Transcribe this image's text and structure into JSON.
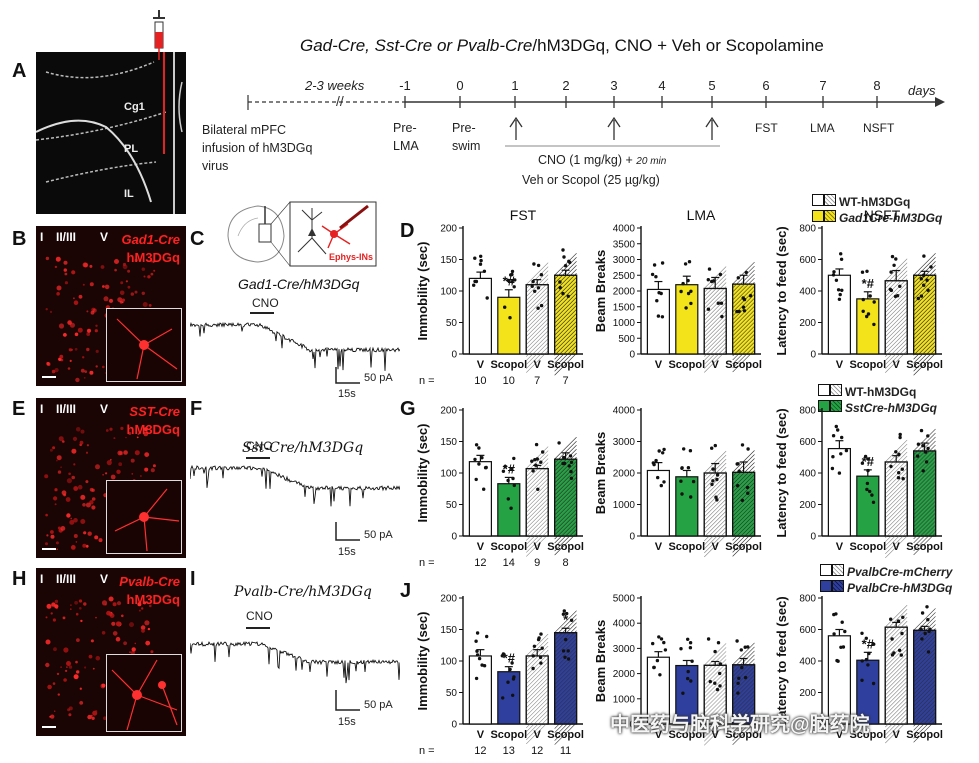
{
  "header": {
    "title_geno": "Gad-Cre, Sst-Cre or Pvalb-Cre",
    "title_rest": "/hM3DGq, CNO + Veh or Scopolamine"
  },
  "panel_labels": [
    "A",
    "B",
    "C",
    "D",
    "E",
    "F",
    "G",
    "H",
    "I",
    "J"
  ],
  "brain": {
    "regions": [
      "Cg1",
      "PL",
      "IL"
    ]
  },
  "timeline": {
    "ticks": [
      "-1",
      "0",
      "1",
      "2",
      "3",
      "4",
      "5",
      "6",
      "7",
      "8"
    ],
    "unit": "days",
    "pre_label": "2-3 weeks",
    "surgery": [
      "Bilateral mPFC",
      "infusion of hM3DGq",
      "virus"
    ],
    "pre_lma": [
      "Pre-",
      "LMA"
    ],
    "pre_swim": [
      "Pre-",
      "swim"
    ],
    "cno_line1": "CNO (1 mg/kg) +",
    "cno_20min": "20 min",
    "cno_line2": "Veh or Scopol (25 µg/kg)",
    "tests": [
      "FST",
      "LMA",
      "NSFT"
    ]
  },
  "micro": {
    "layers": [
      "I",
      "II/III",
      "V"
    ],
    "b": [
      "Gad1-Cre",
      "hM3DGq"
    ],
    "e": [
      "SST-Cre",
      "hM3DGq"
    ],
    "h": [
      "Pvalb-Cre",
      "hM3DGq"
    ]
  },
  "traces": {
    "c_label": "Gad1-Cre/hM3DGq",
    "f_label": "Sst-Cre/hM3DGq",
    "i_label": "Pvalb-Cre/hM3DGq",
    "cno": "CNO",
    "scale_pa": "50 pA",
    "scale_s": "15s",
    "ephys": "Ephys-INs"
  },
  "legends": {
    "d": [
      "WT-hM3DGq",
      "Gad1Cre-hM3DGq"
    ],
    "g": [
      "WT-hM3DGq",
      "SstCre-hM3DGq"
    ],
    "j": [
      "PvalbCre-mCherry",
      "PvalbCre-hM3DGq"
    ]
  },
  "watermark": "中医药与脑科学研究@脑药院",
  "colors": {
    "yellow": "#f2e31a",
    "green": "#25a244",
    "blue": "#2f3f9e",
    "red": "#e52121"
  },
  "chart_data": [
    {
      "id": "D-FST",
      "type": "bar",
      "title": "FST",
      "ylabel": "Immobility (sec)",
      "ylim": [
        0,
        200
      ],
      "ticks": [
        0,
        50,
        100,
        150,
        200
      ],
      "categories": [
        "V",
        "Scopol",
        "V",
        "Scopol"
      ],
      "values": [
        120,
        90,
        110,
        125
      ],
      "errors": [
        10,
        12,
        8,
        8
      ],
      "n": [
        "10",
        "10",
        "7",
        "7"
      ],
      "n_prefix": "n =",
      "annot": [
        "",
        "*#",
        "",
        ""
      ]
    },
    {
      "id": "D-LMA",
      "type": "bar",
      "title": "LMA",
      "ylabel": "Beam Breaks",
      "ylim": [
        0,
        4000
      ],
      "ticks": [
        0,
        500,
        1000,
        1500,
        2000,
        2500,
        3000,
        3500,
        4000
      ],
      "categories": [
        "V",
        "Scopol",
        "V",
        "Scopol"
      ],
      "values": [
        2050,
        2200,
        2080,
        2220
      ],
      "errors": [
        250,
        270,
        350,
        280
      ],
      "annot": [
        "",
        "",
        "",
        ""
      ]
    },
    {
      "id": "D-NSFT",
      "type": "bar",
      "title": "NSFT",
      "ylabel": "Latency to feed (sec)",
      "ylim": [
        0,
        800
      ],
      "ticks": [
        0,
        200,
        400,
        600,
        800
      ],
      "categories": [
        "V",
        "Scopol",
        "V",
        "Scopol"
      ],
      "values": [
        500,
        350,
        465,
        500
      ],
      "errors": [
        40,
        45,
        65,
        25
      ],
      "annot": [
        "",
        "*#",
        "",
        ""
      ]
    },
    {
      "id": "G-FST",
      "type": "bar",
      "ylabel": "Immobility (sec)",
      "ylim": [
        0,
        200
      ],
      "ticks": [
        0,
        50,
        100,
        150,
        200
      ],
      "categories": [
        "V",
        "Scopol",
        "V",
        "Scopol"
      ],
      "values": [
        118,
        83,
        107,
        122
      ],
      "errors": [
        10,
        10,
        5,
        10
      ],
      "n": [
        "12",
        "14",
        "9",
        "8"
      ],
      "n_prefix": "n =",
      "annot": [
        "",
        "*#",
        "",
        ""
      ]
    },
    {
      "id": "G-LMA",
      "type": "bar",
      "ylabel": "Beam Breaks",
      "ylim": [
        0,
        4000
      ],
      "ticks": [
        0,
        1000,
        2000,
        3000,
        4000
      ],
      "categories": [
        "V",
        "Scopol",
        "V",
        "Scopol"
      ],
      "values": [
        2080,
        1880,
        2000,
        2020
      ],
      "errors": [
        250,
        200,
        300,
        330
      ],
      "annot": [
        "",
        "",
        "",
        ""
      ]
    },
    {
      "id": "G-NSFT",
      "type": "bar",
      "ylabel": "Latency to feed (sec)",
      "ylim": [
        0,
        800
      ],
      "ticks": [
        0,
        200,
        400,
        600,
        800
      ],
      "categories": [
        "V",
        "Scopol",
        "V",
        "Scopol"
      ],
      "values": [
        555,
        380,
        470,
        540
      ],
      "errors": [
        50,
        40,
        40,
        50
      ],
      "annot": [
        "",
        "*#",
        "",
        ""
      ]
    },
    {
      "id": "J-FST",
      "type": "bar",
      "ylabel": "Immobility (sec)",
      "ylim": [
        0,
        200
      ],
      "ticks": [
        0,
        50,
        100,
        150,
        200
      ],
      "categories": [
        "V",
        "Scopol",
        "V",
        "Scopol"
      ],
      "values": [
        108,
        83,
        108,
        145
      ],
      "errors": [
        10,
        8,
        10,
        7
      ],
      "n": [
        "12",
        "13",
        "12",
        "11"
      ],
      "n_prefix": "n =",
      "annot": [
        "",
        "*#",
        "",
        "*"
      ]
    },
    {
      "id": "J-LMA",
      "type": "bar",
      "ylabel": "Beam Breaks",
      "ylim": [
        0,
        5000
      ],
      "ticks": [
        0,
        1000,
        2000,
        3000,
        4000,
        5000
      ],
      "categories": [
        "V",
        "Scopol",
        "V",
        "Scopol"
      ],
      "values": [
        2650,
        2320,
        2330,
        2350
      ],
      "errors": [
        220,
        200,
        150,
        250
      ],
      "annot": [
        "",
        "",
        "",
        ""
      ]
    },
    {
      "id": "J-NSFT",
      "type": "bar",
      "ylabel": "Latency to feed (sec)",
      "ylim": [
        0,
        800
      ],
      "ticks": [
        0,
        200,
        400,
        600,
        800
      ],
      "categories": [
        "V",
        "Scopol",
        "V",
        "Scopol"
      ],
      "values": [
        560,
        405,
        615,
        595
      ],
      "errors": [
        40,
        50,
        30,
        25
      ],
      "annot": [
        "",
        "*#",
        "",
        ""
      ]
    }
  ]
}
